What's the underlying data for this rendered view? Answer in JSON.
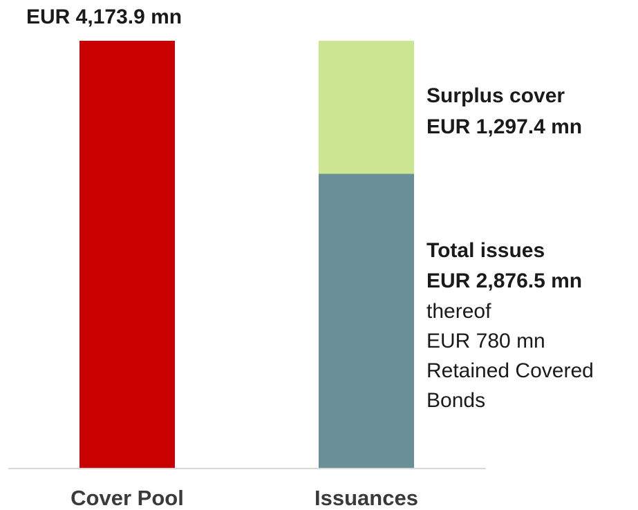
{
  "chart_data": {
    "type": "bar",
    "stacked": true,
    "unit": "EUR mn",
    "categories": [
      "Cover Pool",
      "Issuances"
    ],
    "ylim": [
      0,
      4173.9
    ],
    "grid": false,
    "series": [
      {
        "key": "cover_pool",
        "values": [
          4173.9,
          0
        ],
        "color": "#c80000"
      },
      {
        "key": "total_issues",
        "values": [
          0,
          2876.5
        ],
        "color": "#6b8f98"
      },
      {
        "key": "surplus_cover",
        "values": [
          0,
          1297.4
        ],
        "color": "#cbe592"
      }
    ],
    "annotations": {
      "cover_pool_total": "EUR 4,173.9 mn",
      "surplus_title": "Surplus cover",
      "surplus_value": "EUR 1,297.4 mn",
      "issues_title": "Total issues",
      "issues_value": "EUR 2,876.5 mn",
      "issues_note_1": "thereof",
      "issues_note_2": "EUR 780 mn",
      "issues_note_3": "Retained Covered",
      "issues_note_4": "Bonds"
    },
    "colors": {
      "axis": "#d9d9d9",
      "text": "#1a1a1a",
      "category_text": "#3a3a3a"
    }
  }
}
